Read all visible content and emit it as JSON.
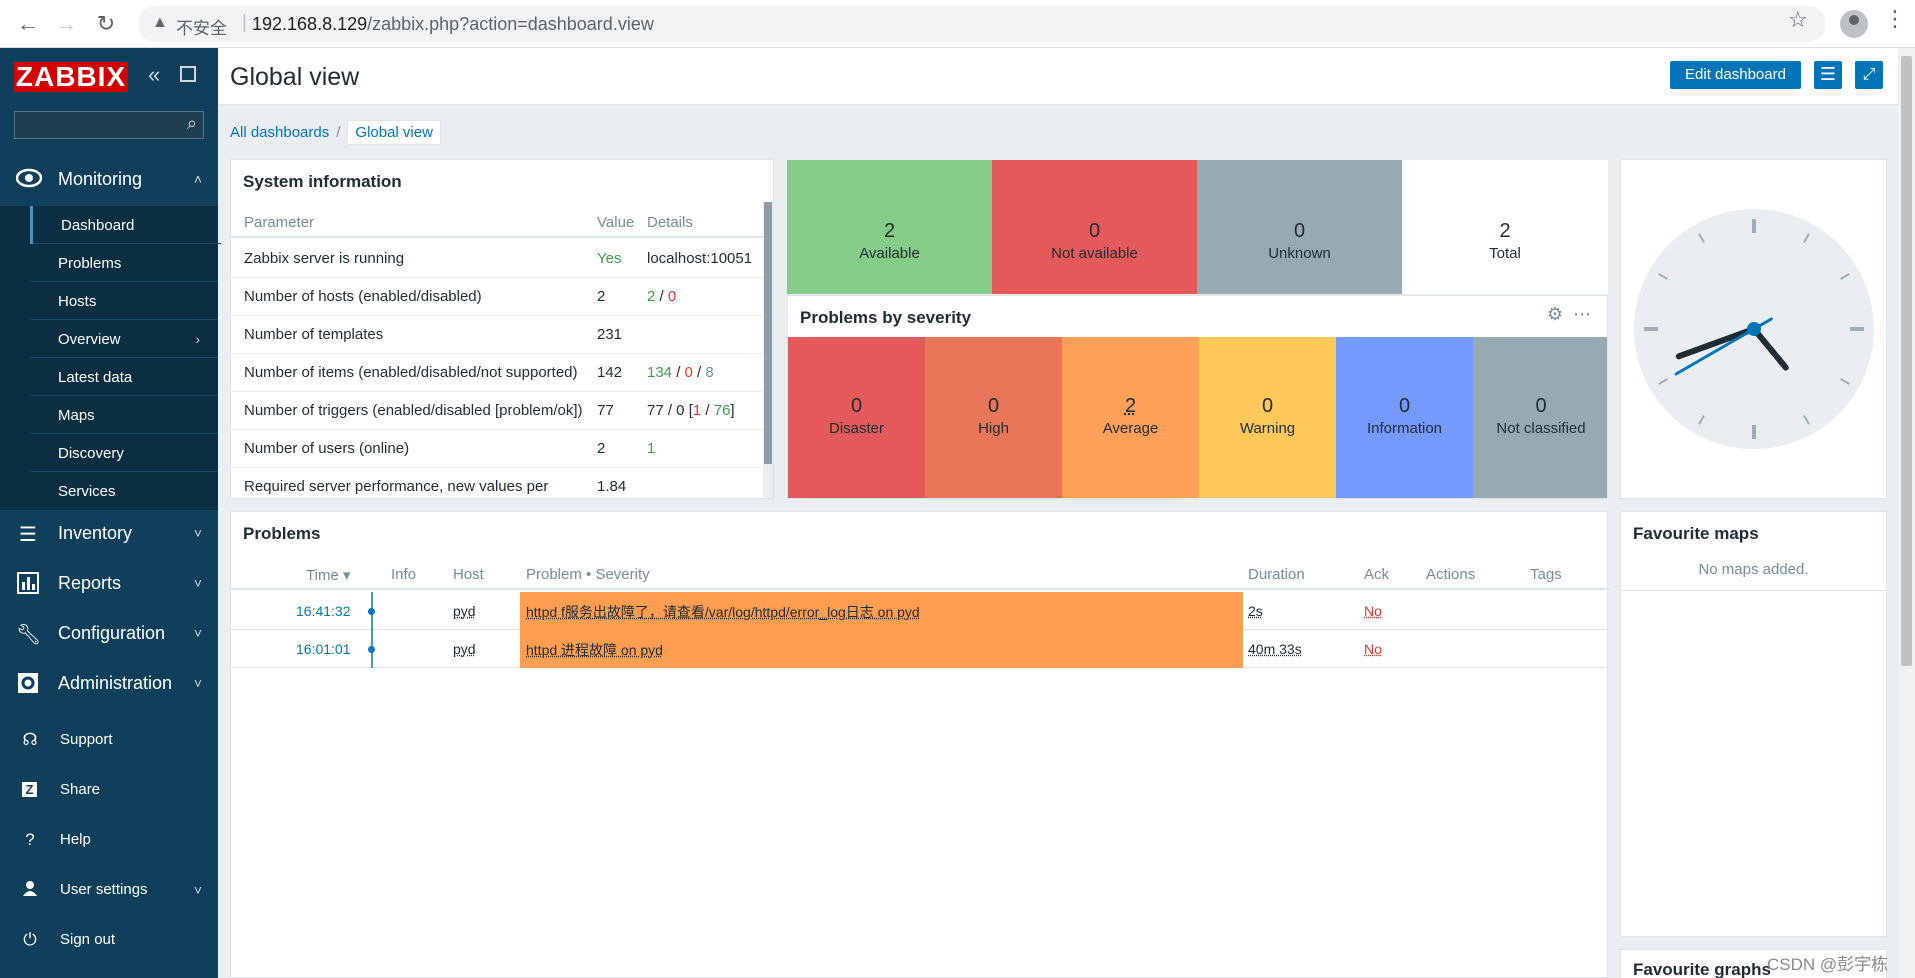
{
  "browser": {
    "insecure_label": "不安全",
    "url_host": "192.168.8.129",
    "url_path": "/zabbix.php?action=dashboard.view"
  },
  "sidebar": {
    "logo": "ZABBIX",
    "search_placeholder": "",
    "monitoring": {
      "label": "Monitoring",
      "items": [
        {
          "label": "Dashboard"
        },
        {
          "label": "Problems"
        },
        {
          "label": "Hosts"
        },
        {
          "label": "Overview"
        },
        {
          "label": "Latest data"
        },
        {
          "label": "Maps"
        },
        {
          "label": "Discovery"
        },
        {
          "label": "Services"
        }
      ]
    },
    "sections": [
      {
        "label": "Inventory"
      },
      {
        "label": "Reports"
      },
      {
        "label": "Configuration"
      },
      {
        "label": "Administration"
      }
    ],
    "bottom": [
      {
        "label": "Support"
      },
      {
        "label": "Share"
      },
      {
        "label": "Help"
      },
      {
        "label": "User settings"
      },
      {
        "label": "Sign out"
      }
    ]
  },
  "header": {
    "title": "Global view",
    "edit_label": "Edit dashboard"
  },
  "breadcrumb": {
    "all": "All dashboards",
    "current": "Global view"
  },
  "system_info": {
    "title": "System information",
    "columns": [
      "Parameter",
      "Value",
      "Details"
    ],
    "rows": [
      {
        "param": "Zabbix server is running",
        "value": "Yes",
        "details": "localhost:10051"
      },
      {
        "param": "Number of hosts (enabled/disabled)",
        "value": "2",
        "d1": "2",
        "d2": "0"
      },
      {
        "param": "Number of templates",
        "value": "231"
      },
      {
        "param": "Number of items (enabled/disabled/not supported)",
        "value": "142",
        "d1": "134",
        "d2": "0",
        "d3": "8"
      },
      {
        "param": "Number of triggers (enabled/disabled [problem/ok])",
        "value": "77",
        "d1": "77 / 0 [",
        "d2": "1",
        "d3": "76",
        "d4": "]"
      },
      {
        "param": "Number of users (online)",
        "value": "2",
        "d1": "1"
      },
      {
        "param": "Required server performance, new values per",
        "value": "1.84"
      }
    ]
  },
  "host_availability": [
    {
      "count": "2",
      "label": "Available",
      "color": "#86cc89"
    },
    {
      "count": "0",
      "label": "Not available",
      "color": "#e45959"
    },
    {
      "count": "0",
      "label": "Unknown",
      "color": "#97aab3"
    },
    {
      "count": "2",
      "label": "Total",
      "color": "#ffffff"
    }
  ],
  "problems_by_severity": {
    "title": "Problems by severity",
    "items": [
      {
        "count": "0",
        "label": "Disaster",
        "color": "#e45959"
      },
      {
        "count": "0",
        "label": "High",
        "color": "#e97659"
      },
      {
        "count": "2",
        "label": "Average",
        "color": "#ffa059"
      },
      {
        "count": "0",
        "label": "Warning",
        "color": "#ffc859"
      },
      {
        "count": "0",
        "label": "Information",
        "color": "#7499ff"
      },
      {
        "count": "0",
        "label": "Not classified",
        "color": "#97aab3"
      }
    ]
  },
  "clock": {
    "hour": 16,
    "minute": 41,
    "second": 40
  },
  "problems": {
    "title": "Problems",
    "columns": {
      "time": "Time ▾",
      "info": "Info",
      "host": "Host",
      "problem": "Problem • Severity",
      "duration": "Duration",
      "ack": "Ack",
      "actions": "Actions",
      "tags": "Tags"
    },
    "rows": [
      {
        "time": "16:41:32",
        "host": "pyd",
        "problem": "httpd f服务出故障了，请查看/var/log/httpd/error_log日志 on pyd",
        "duration": "2s",
        "ack": "No"
      },
      {
        "time": "16:01:01",
        "host": "pyd",
        "problem": "httpd 进程故障 on pyd",
        "duration": "40m 33s",
        "ack": "No"
      }
    ]
  },
  "favourite_maps": {
    "title": "Favourite maps",
    "empty": "No maps added."
  },
  "favourite_graphs": {
    "title": "Favourite graphs"
  },
  "watermark": "CSDN @彭宇栋"
}
